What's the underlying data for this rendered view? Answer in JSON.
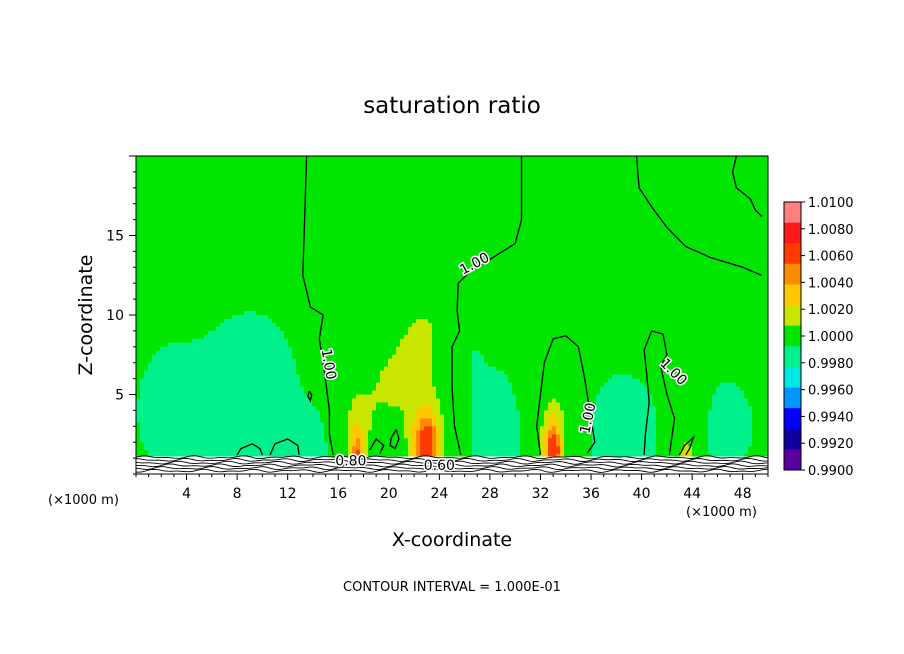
{
  "chart_data": {
    "type": "heatmap",
    "title": "saturation ratio",
    "xlabel": "X-coordinate",
    "ylabel": "Z-coordinate",
    "x_unit": "(×1000 m)",
    "x_unit_right": "(×1000 m)",
    "xlim": [
      0,
      50
    ],
    "ylim": [
      0,
      20
    ],
    "x_ticks": [
      4,
      8,
      12,
      16,
      20,
      24,
      28,
      32,
      36,
      40,
      44,
      48
    ],
    "y_ticks": [
      5,
      10,
      15
    ],
    "footer": "CONTOUR INTERVAL = 1.000E-01",
    "colorbar": {
      "levels": [
        "1.0100",
        "1.0080",
        "1.0060",
        "1.0040",
        "1.0020",
        "1.0000",
        "0.9980",
        "0.9960",
        "0.9940",
        "0.9920",
        "0.9900"
      ],
      "colors": [
        "#ff8080",
        "#ff1a1a",
        "#ff3c00",
        "#ff8c00",
        "#ffc800",
        "#c8e600",
        "#00e600",
        "#00f08c",
        "#00e6e6",
        "#0096ff",
        "#0000ff",
        "#1000a0",
        "#5a00a0"
      ]
    },
    "contour_labels": [
      {
        "text": "1.00",
        "x": 26.8,
        "y": 13.2,
        "angle": -28
      },
      {
        "text": "1.00",
        "x": 15.2,
        "y": 6.9,
        "angle": 80
      },
      {
        "text": "1.00",
        "x": 35.8,
        "y": 3.5,
        "angle": -78
      },
      {
        "text": "1.00",
        "x": 42.5,
        "y": 6.4,
        "angle": 45
      },
      {
        "text": "0.80",
        "x": 17.0,
        "y": 0.8,
        "angle": 0
      },
      {
        "text": "0.60",
        "x": 24.0,
        "y": 0.5,
        "angle": 0
      }
    ],
    "moist_cores": [
      {
        "x": 17.5,
        "z": 0.3,
        "amp": 1.0062,
        "sx": 0.45,
        "sz": 1.7
      },
      {
        "x": 23.0,
        "z": 1.7,
        "amp": 1.0066,
        "sx": 0.8,
        "sz": 1.7
      },
      {
        "x": 33.0,
        "z": 1.4,
        "amp": 1.0068,
        "sx": 0.55,
        "sz": 1.5
      },
      {
        "x": 43.6,
        "z": 0.1,
        "amp": 1.005,
        "sx": 0.45,
        "sz": 1.1
      }
    ]
  }
}
